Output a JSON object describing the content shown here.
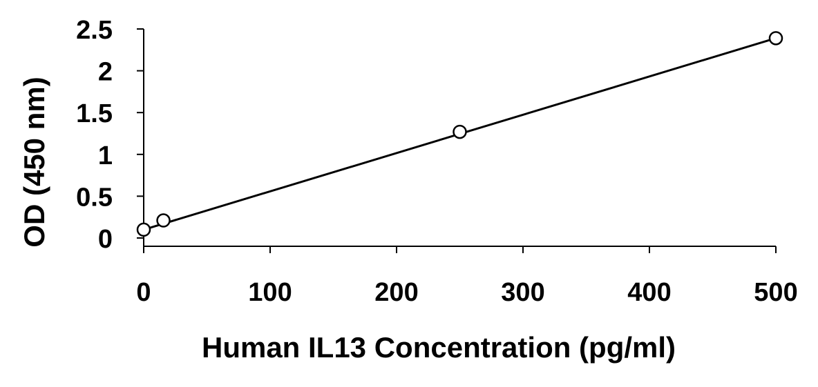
{
  "chart_data": {
    "type": "scatter",
    "title": "",
    "xlabel": "Human IL13 Concentration (pg/ml)",
    "ylabel": "OD (450 nm)",
    "xlim": [
      0,
      500
    ],
    "ylim": [
      0,
      2.5
    ],
    "x_ticks": [
      {
        "value": 0,
        "label": "0"
      },
      {
        "value": 100,
        "label": "100"
      },
      {
        "value": 200,
        "label": "200"
      },
      {
        "value": 300,
        "label": "300"
      },
      {
        "value": 400,
        "label": "400"
      },
      {
        "value": 500,
        "label": "500"
      }
    ],
    "y_ticks": [
      {
        "value": 0,
        "label": "0"
      },
      {
        "value": 0.5,
        "label": "0.5"
      },
      {
        "value": 1,
        "label": "1"
      },
      {
        "value": 1.5,
        "label": "1.5"
      },
      {
        "value": 2,
        "label": "2"
      },
      {
        "value": 2.5,
        "label": "2.5"
      }
    ],
    "grid": false,
    "legend": "none",
    "series": [
      {
        "marker": "open-circle",
        "color": "#000000",
        "points": [
          {
            "x": 0,
            "y": 0.1
          },
          {
            "x": 15.6,
            "y": 0.21
          },
          {
            "x": 250,
            "y": 1.27
          },
          {
            "x": 500,
            "y": 2.39
          }
        ]
      }
    ],
    "trendline": {
      "type": "linear",
      "from": [
        0,
        0.1
      ],
      "to": [
        500,
        2.39
      ]
    }
  }
}
